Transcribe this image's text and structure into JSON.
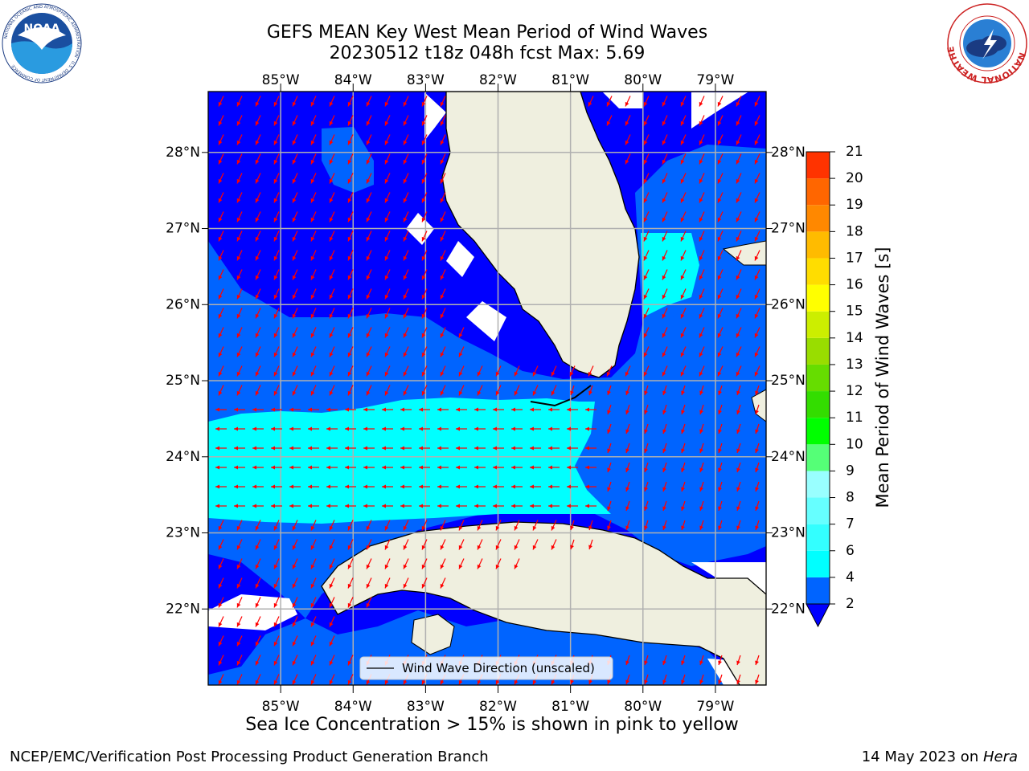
{
  "title": {
    "line1": "GEFS MEAN Key West Mean Period of Wind Waves",
    "line2": "20230512 t18z 048h fcst   Max: 5.69"
  },
  "map": {
    "lon_ticks": [
      "85°W",
      "84°W",
      "83°W",
      "82°W",
      "81°W",
      "80°W",
      "79°W"
    ],
    "lat_ticks": [
      "28°N",
      "27°N",
      "26°N",
      "25°N",
      "24°N",
      "23°N",
      "22°N"
    ],
    "lon_values": [
      -85,
      -84,
      -83,
      -82,
      -81,
      -80,
      -79
    ],
    "lat_values": [
      28,
      27,
      26,
      25,
      24,
      23,
      22
    ],
    "extent": {
      "lon_min": -86.0,
      "lon_max": -78.3,
      "lat_min": 21.0,
      "lat_max": 28.8
    },
    "legend_label": "Wind Wave Direction (unscaled)",
    "arrow_color": "#ff0000",
    "land_color": "#efefdf"
  },
  "colorbar": {
    "label": "Mean Period of Wind Waves [s]",
    "ticks": [
      "2",
      "4",
      "6",
      "7",
      "8",
      "9",
      "10",
      "11",
      "12",
      "13",
      "14",
      "15",
      "16",
      "17",
      "18",
      "19",
      "20",
      "21"
    ],
    "colors": [
      "#0064ff",
      "#00ffff",
      "#33ffff",
      "#66ffff",
      "#99ffff",
      "#55ff77",
      "#00ff00",
      "#33dd00",
      "#66dd00",
      "#99dd00",
      "#ccee00",
      "#ffff00",
      "#ffdd00",
      "#ffbb00",
      "#ff8800",
      "#ff6600",
      "#ff3300",
      "#ff0000"
    ],
    "under_color": "#0000ff"
  },
  "chart_data": {
    "type": "heatmap",
    "title": "GEFS MEAN Key West Mean Period of Wind Waves",
    "subtitle": "20230512 t18z 048h fcst   Max: 5.69",
    "max": 5.69,
    "units": "s",
    "zones": [
      {
        "value_class": "<2",
        "color": "#0000ff"
      },
      {
        "value_class": "2-4",
        "color": "#0064ff"
      },
      {
        "value_class": "4-6",
        "color": "#00ffff"
      }
    ]
  },
  "footer": {
    "sea_ice_note": "Sea Ice Concentration > 15% is shown in pink to yellow",
    "left": "NCEP/EMC/Verification Post Processing Product Generation Branch",
    "right_prefix": "14 May 2023 on ",
    "right_host": "Hera"
  },
  "logos": {
    "noaa": "NOAA",
    "noaa_ring": "NATIONAL OCEANIC AND ATMOSPHERIC ADMINISTRATION · U.S. DEPARTMENT OF COMMERCE",
    "nws_ring": "NATIONAL WEATHER SERVICE"
  }
}
